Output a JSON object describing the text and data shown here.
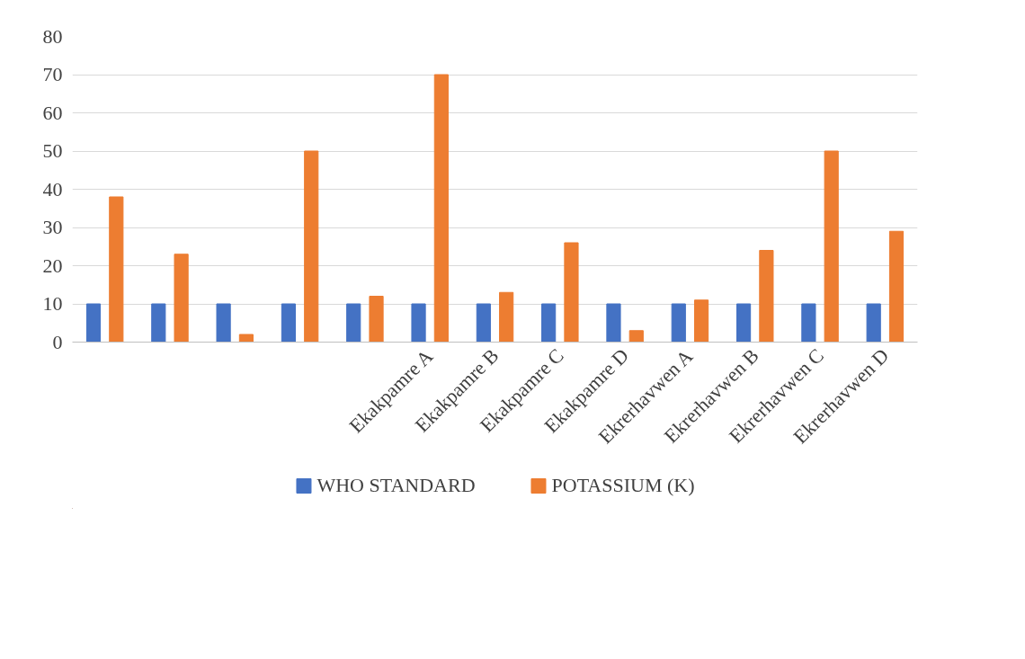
{
  "chart_data": {
    "type": "bar",
    "categories": [
      null,
      null,
      null,
      null,
      null,
      "Ekakpamre A",
      "Ekakpamre B",
      "Ekakpamre C",
      "Ekakpamre D",
      "Ekrerhavwen A",
      "Ekrerhavwen B",
      "Ekrerhavwen C",
      "Ekrerhavwen D"
    ],
    "series": [
      {
        "name": "WHO STANDARD",
        "color": "#4472c4",
        "values": [
          10,
          10,
          10,
          10,
          10,
          10,
          10,
          10,
          10,
          10,
          10,
          10,
          10
        ]
      },
      {
        "name": "POTASSIUM (K)",
        "color": "#ed7d31",
        "values": [
          38,
          23,
          2,
          50,
          12,
          70,
          13,
          26,
          3,
          11,
          24,
          50,
          29
        ]
      }
    ],
    "ylim": [
      0,
      80
    ],
    "yticks": [
      0,
      10,
      20,
      30,
      40,
      50,
      60,
      70,
      80
    ],
    "grid": "y",
    "legend": "bottom"
  }
}
